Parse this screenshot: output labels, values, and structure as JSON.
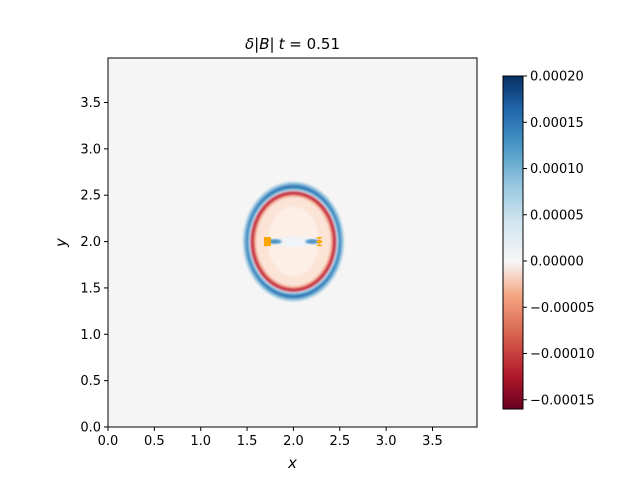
{
  "chart_data": {
    "type": "heatmap",
    "title": "δ|B| t = 0.51",
    "title_parts": {
      "delta": "δ",
      "bar_open": "|",
      "var": "B",
      "bar_close": "|",
      "t_var": "t",
      "equals": " = ",
      "t_value": "0.51"
    },
    "xlabel": "x",
    "ylabel": "y",
    "xlim": [
      0,
      3.98
    ],
    "ylim": [
      0,
      3.98
    ],
    "x_ticks": [
      "0.0",
      "0.5",
      "1.0",
      "1.5",
      "2.0",
      "2.5",
      "3.0",
      "3.5"
    ],
    "x_tick_values": [
      0,
      0.5,
      1.0,
      1.5,
      2.0,
      2.5,
      3.0,
      3.5
    ],
    "y_ticks": [
      "0.0",
      "0.5",
      "1.0",
      "1.5",
      "2.0",
      "2.5",
      "3.0",
      "3.5"
    ],
    "y_tick_values": [
      0,
      0.5,
      1.0,
      1.5,
      2.0,
      2.5,
      3.0,
      3.5
    ],
    "colormap": "RdBu",
    "background_color": "#f5f5f5",
    "colorbar": {
      "vmin": -0.00016,
      "vmax": 0.0002,
      "tick_values": [
        -0.00015,
        -0.0001,
        -5e-05,
        0,
        5e-05,
        0.0001,
        0.00015,
        0.0002
      ],
      "tick_labels": [
        "−0.00015",
        "−0.00010",
        "−0.00005",
        "0.00000",
        "0.00005",
        "0.00010",
        "0.00015",
        "0.00020"
      ]
    },
    "features": {
      "center": [
        2.0,
        2.0
      ],
      "outer_blue_ring": {
        "rx": 0.52,
        "ry": 0.62,
        "value": 0.00016
      },
      "inner_red_ring": {
        "rx": 0.45,
        "ry": 0.53,
        "value": -0.00014
      },
      "interior_value": -2e-05,
      "orange_markers": [
        [
          1.72,
          2.0
        ],
        [
          2.28,
          2.0
        ]
      ],
      "marker_color": "#ffa500"
    }
  }
}
